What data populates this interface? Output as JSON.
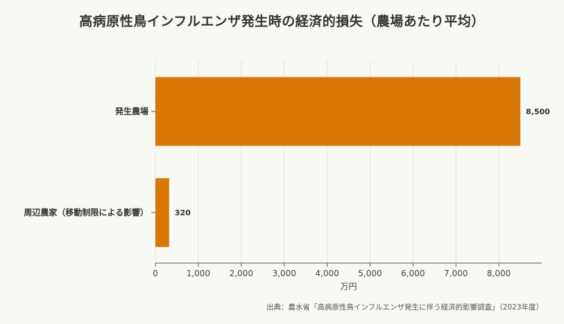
{
  "chart_data": {
    "type": "bar",
    "orientation": "horizontal",
    "title": "高病原性鳥インフルエンザ発生時の経済的損失（農場あたり平均）",
    "categories": [
      "発生農場",
      "周辺農家（移動制限による影響）"
    ],
    "values": [
      8500,
      320
    ],
    "value_labels": [
      "8,500",
      "320"
    ],
    "xlabel": "万円",
    "ylabel": "",
    "xlim": [
      0,
      9000
    ],
    "xticks": [
      0,
      1000,
      2000,
      3000,
      4000,
      5000,
      6000,
      7000,
      8000
    ],
    "xtick_labels": [
      "0",
      "1,000",
      "2,000",
      "3,000",
      "4,000",
      "5,000",
      "6,000",
      "7,000",
      "8,000"
    ],
    "grid": true,
    "bar_color": "#d97706",
    "source": "出典：農水省「高病原性鳥インフルエンザ発生に伴う経済的影響調査」（2023年度）"
  }
}
